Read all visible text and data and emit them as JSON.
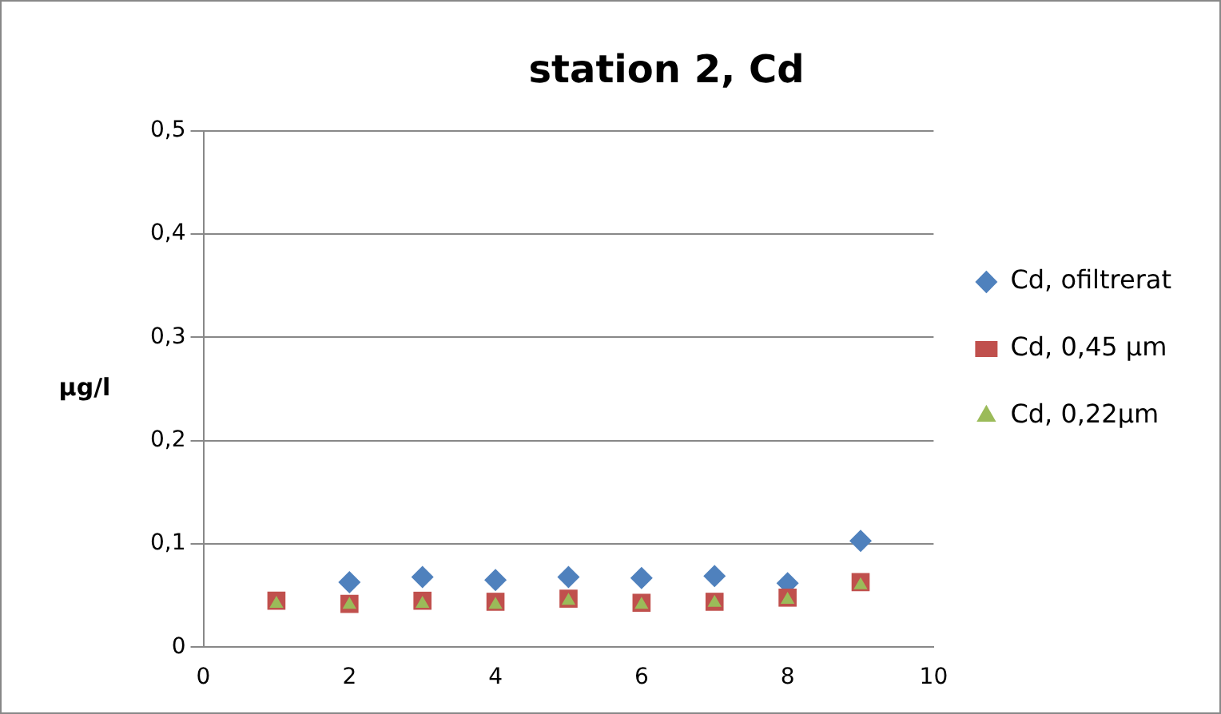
{
  "chart_data": {
    "type": "scatter",
    "title": "station 2, Cd",
    "ylabel": "µg/l",
    "x": [
      1,
      2,
      3,
      4,
      5,
      6,
      7,
      8,
      9
    ],
    "series": [
      {
        "name": "Cd, ofiltrerat",
        "color": "#4f81bd",
        "marker": "diamond",
        "values": [
          null,
          0.063,
          0.068,
          0.065,
          0.068,
          0.067,
          0.069,
          0.062,
          0.103
        ]
      },
      {
        "name": "Cd, 0,45 µm",
        "color": "#c0504d",
        "marker": "square",
        "values": [
          0.045,
          0.042,
          0.045,
          0.044,
          0.047,
          0.043,
          0.044,
          0.048,
          0.063
        ]
      },
      {
        "name": "Cd, 0,22µm",
        "color": "#9bbb59",
        "marker": "triangle",
        "values": [
          0.042,
          0.041,
          0.042,
          0.041,
          0.045,
          0.041,
          0.043,
          0.046,
          0.06
        ]
      }
    ],
    "xlim": [
      0,
      10
    ],
    "xticks": [
      0,
      2,
      4,
      6,
      8,
      10
    ],
    "ylim": [
      0,
      0.5
    ],
    "yticks": [
      0,
      {
        "value": 0.1,
        "label": "0,1"
      },
      {
        "value": 0.2,
        "label": "0,2"
      },
      {
        "value": 0.3,
        "label": "0,3"
      },
      {
        "value": 0.4,
        "label": "0,4"
      },
      {
        "value": 0.5,
        "label": "0,5"
      }
    ],
    "grid": "y",
    "legend": "right"
  }
}
